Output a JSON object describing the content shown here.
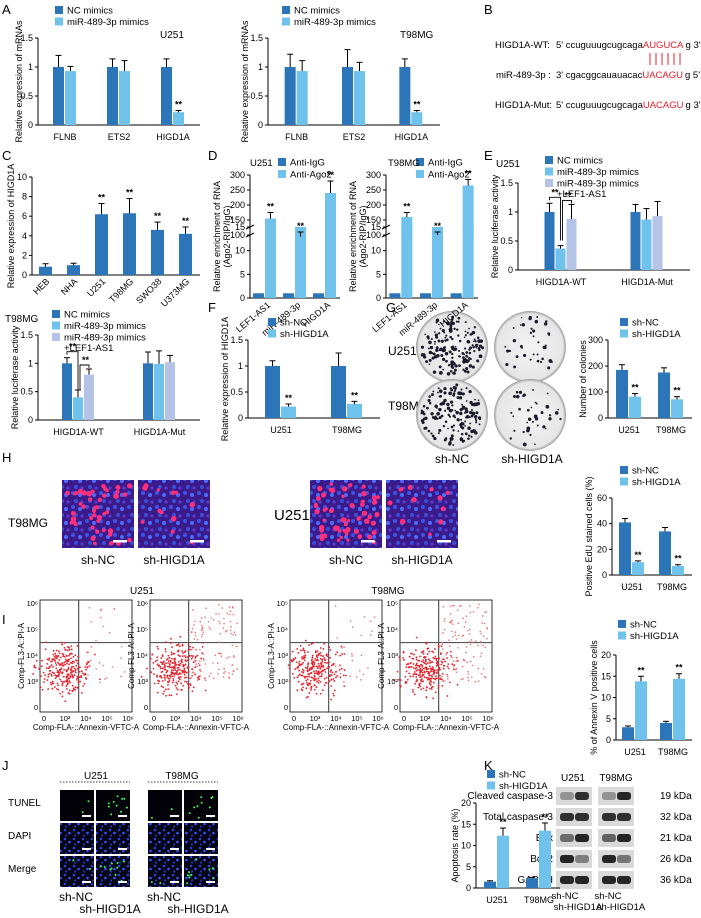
{
  "colors": {
    "dark": "#2b75b8",
    "light": "#6fc2ec",
    "pale": "#b5c4e6",
    "red": "#e8202a"
  },
  "panelB": {
    "wt_label": "HIGD1A-WT:",
    "wt_seq": "5' ccuguuugcugcaga",
    "wt_site": "AUGUCA",
    "wt_end": "g 3'",
    "mir_label": "miR-489-3p :",
    "mir_seq": "3' cgacggcauauacac",
    "mir_site": "UACAGU",
    "mir_end": "g 5'",
    "mut_label": "HIGD1A-Mut:",
    "mut_seq": "5' ccuguuugcugcaga",
    "mut_site": "UACAGU",
    "mut_end": "g 3'"
  },
  "panelG": {
    "row_labels": [
      "U251",
      "T98MG"
    ],
    "col_labels": [
      "sh-NC",
      "sh-HIGD1A"
    ]
  },
  "panelH": {
    "cell_labels": [
      "T98MG",
      "U251"
    ],
    "col_labels": [
      "sh-NC",
      "sh-HIGD1A",
      "sh-NC",
      "sh-HIGD1A"
    ]
  },
  "panelI": {
    "group_titles": [
      "U251",
      "T98MG"
    ],
    "xlabel": "Comp-FLA-::Annexin-VFTC-A",
    "ylabel": "Comp-FL3-A::PI-A",
    "xticks": [
      "0",
      "10³",
      "10⁴",
      "10⁵",
      "10⁶"
    ],
    "yticks": [
      "10⁶",
      "10⁵",
      "10⁴",
      "10³",
      "0"
    ],
    "yticks_t98": [
      "10⁵",
      "10⁴",
      "10³",
      "10²",
      "0"
    ]
  },
  "panelJ": {
    "group_titles": [
      "U251",
      "T98MG"
    ],
    "row_labels": [
      "TUNEL",
      "DAPI",
      "Merge"
    ],
    "col_labels": [
      "sh-NC",
      "sh-HIGD1A",
      "sh-NC",
      "sh-HIGD1A"
    ]
  },
  "panelK": {
    "group_titles": [
      "U251",
      "T98MG"
    ],
    "proteins": [
      "Cleaved caspase-3",
      "Total caspase-3",
      "Bax",
      "Bcl-2",
      "GAPDH"
    ],
    "sizes": [
      "19 kDa",
      "32 kDa",
      "21 kDa",
      "26 kDa",
      "36 kDa"
    ],
    "lanes": [
      "sh-NC",
      "sh-HIGD1A",
      "sh-NC",
      "sh-HIGD1A"
    ]
  },
  "chart_data": [
    {
      "id": "A1",
      "panel": "A",
      "type": "bar",
      "annotation": "U251",
      "categories": [
        "FLNB",
        "ETS2",
        "HIGD1A"
      ],
      "series": [
        {
          "name": "NC mimics",
          "values": [
            1.0,
            1.0,
            1.0
          ],
          "errors": [
            0.2,
            0.14,
            0.14
          ]
        },
        {
          "name": "miR-489-3p mimics",
          "values": [
            0.93,
            0.93,
            0.22
          ],
          "errors": [
            0.08,
            0.18,
            0.03
          ]
        }
      ],
      "ylabel": "Relative expression of mRNAs",
      "ylim": [
        0,
        1.5
      ],
      "yticks": [
        0,
        0.5,
        1.0,
        1.5
      ],
      "sig": [
        "",
        "",
        "**"
      ]
    },
    {
      "id": "A2",
      "panel": "",
      "type": "bar",
      "annotation": "T98MG",
      "categories": [
        "FLNB",
        "ETS2",
        "HIGD1A"
      ],
      "series": [
        {
          "name": "NC mimics",
          "values": [
            1.0,
            1.0,
            1.0
          ],
          "errors": [
            0.22,
            0.3,
            0.14
          ]
        },
        {
          "name": "miR-489-3p mimics",
          "values": [
            0.93,
            0.93,
            0.22
          ],
          "errors": [
            0.18,
            0.15,
            0.03
          ]
        }
      ],
      "ylabel": "Relative expression of mRNAs",
      "ylim": [
        0,
        1.5
      ],
      "yticks": [
        0,
        0.5,
        1.0,
        1.5
      ],
      "sig": [
        "",
        "",
        "**"
      ]
    },
    {
      "id": "C",
      "panel": "C",
      "type": "bar",
      "categories": [
        "HEB",
        "NHA",
        "U251",
        "T98MG",
        "SWO38",
        "U373MG"
      ],
      "series": [
        {
          "name": "",
          "values": [
            0.85,
            1.0,
            6.2,
            6.3,
            4.6,
            4.2
          ],
          "errors": [
            0.3,
            0.2,
            1.1,
            1.5,
            0.8,
            0.7
          ]
        }
      ],
      "ylabel": "Relative expression of HIGD1A",
      "ylim": [
        0,
        10
      ],
      "yticks": [
        0,
        2,
        4,
        6,
        8,
        10
      ],
      "sig": [
        "",
        "",
        "**",
        "**",
        "**",
        "**"
      ]
    },
    {
      "id": "D1",
      "panel": "D",
      "type": "bar",
      "annotation": "U251",
      "categories": [
        "LEF1-AS1",
        "miR-489-3p",
        "HIGD1A"
      ],
      "series": [
        {
          "name": "Anti-IgG",
          "values": [
            1.0,
            1.0,
            1.0
          ],
          "errors": [
            0.1,
            0.1,
            0.1
          ]
        },
        {
          "name": "Anti-Ago2",
          "values": [
            155,
            95,
            240
          ],
          "errors": [
            20,
            15,
            40
          ]
        }
      ],
      "ylabel": "Relative enrichment of RNA (Ago2-RIP/IgG)",
      "broken_axis": true,
      "yticks": [
        0,
        5,
        10,
        15,
        100,
        150,
        200,
        250,
        300
      ],
      "sig": [
        "**",
        "**",
        "**"
      ]
    },
    {
      "id": "D2",
      "panel": "",
      "type": "bar",
      "annotation": "T98MG",
      "categories": [
        "LEF1-AS1",
        "miR-489-3p",
        "HIGD1A"
      ],
      "series": [
        {
          "name": "Anti-IgG",
          "values": [
            1.0,
            1.0,
            1.0
          ],
          "errors": [
            0.1,
            0.1,
            0.1
          ]
        },
        {
          "name": "Anti-Ago2",
          "values": [
            160,
            100,
            265
          ],
          "errors": [
            15,
            10,
            20
          ]
        }
      ],
      "ylabel": "Relative enrichment of RNA (Ago2-RIP/IgG)",
      "broken_axis": true,
      "yticks": [
        0,
        5,
        10,
        15,
        100,
        150,
        200,
        250,
        300
      ],
      "sig": [
        "**",
        "**",
        "**"
      ]
    },
    {
      "id": "E1",
      "panel": "E",
      "type": "bar",
      "annotation": "U251",
      "categories": [
        "HIGD1A-WT",
        "HIGD1A-Mut"
      ],
      "series": [
        {
          "name": "NC mimics",
          "values": [
            1.0,
            1.0
          ],
          "errors": [
            0.15,
            0.13
          ]
        },
        {
          "name": "miR-489-3p mimics",
          "values": [
            0.37,
            0.87
          ],
          "errors": [
            0.05,
            0.19
          ]
        },
        {
          "name": "miR-489-3p mimics +LEF1-AS1",
          "values": [
            0.88,
            0.93
          ],
          "errors": [
            0.25,
            0.25
          ]
        }
      ],
      "ylabel": "Relative luciferase activity",
      "ylim": [
        0,
        1.5
      ],
      "yticks": [
        0,
        0.5,
        1.0,
        1.5
      ],
      "sig": [
        "**",
        "**"
      ]
    },
    {
      "id": "E2",
      "panel": "",
      "type": "bar",
      "annotation": "T98MG",
      "categories": [
        "HIGD1A-WT",
        "HIGD1A-Mut"
      ],
      "series": [
        {
          "name": "NC mimics",
          "values": [
            1.0,
            1.0
          ],
          "errors": [
            0.1,
            0.2
          ]
        },
        {
          "name": "miR-489-3p mimics",
          "values": [
            0.4,
            0.99
          ],
          "errors": [
            0.13,
            0.23
          ]
        },
        {
          "name": "miR-489-3p mimics +LEF1-AS1",
          "values": [
            0.8,
            1.02
          ],
          "errors": [
            0.1,
            0.12
          ]
        }
      ],
      "ylabel": "Relative luciferase activity",
      "ylim": [
        0,
        1.5
      ],
      "yticks": [
        0,
        0.5,
        1.0,
        1.5
      ],
      "sig": [
        "**",
        "**"
      ]
    },
    {
      "id": "F",
      "panel": "F",
      "type": "bar",
      "categories": [
        "U251",
        "T98MG"
      ],
      "series": [
        {
          "name": "sh-NC",
          "values": [
            1.0,
            1.0
          ],
          "errors": [
            0.1,
            0.25
          ]
        },
        {
          "name": "sh-HIGD1A",
          "values": [
            0.22,
            0.27
          ],
          "errors": [
            0.05,
            0.05
          ]
        }
      ],
      "ylabel": "Relative expression of HIGD1A",
      "ylim": [
        0,
        1.5
      ],
      "yticks": [
        0,
        0.5,
        1.0,
        1.5
      ],
      "sig": [
        "**",
        "**"
      ]
    },
    {
      "id": "G",
      "panel": "G",
      "type": "bar",
      "categories": [
        "U251",
        "T98MG"
      ],
      "series": [
        {
          "name": "sh-NC",
          "values": [
            185,
            175
          ],
          "errors": [
            20,
            18
          ]
        },
        {
          "name": "sh-HIGD1A",
          "values": [
            82,
            72
          ],
          "errors": [
            12,
            10
          ]
        }
      ],
      "ylabel": "Number of colonies",
      "ylim": [
        0,
        300
      ],
      "yticks": [
        0,
        100,
        200,
        300
      ],
      "sig": [
        "**",
        "**"
      ]
    },
    {
      "id": "H",
      "panel": "H",
      "type": "bar",
      "categories": [
        "U251",
        "T98MG"
      ],
      "series": [
        {
          "name": "sh-NC",
          "values": [
            41,
            34
          ],
          "errors": [
            3,
            3
          ]
        },
        {
          "name": "sh-HIGD1A",
          "values": [
            10,
            7
          ],
          "errors": [
            1,
            1
          ]
        }
      ],
      "ylabel": "Positive EdU stained cells (%)",
      "ylim": [
        0,
        60
      ],
      "yticks": [
        0,
        20,
        40,
        60
      ],
      "sig": [
        "**",
        "**"
      ]
    },
    {
      "id": "I",
      "panel": "I",
      "type": "bar",
      "categories": [
        "U251",
        "T98MG"
      ],
      "series": [
        {
          "name": "sh-NC",
          "values": [
            3,
            4
          ],
          "errors": [
            0.3,
            0.4
          ]
        },
        {
          "name": "sh-HIGD1A",
          "values": [
            13.8,
            14.4
          ],
          "errors": [
            1.2,
            1.2
          ]
        }
      ],
      "ylabel": "% of Annexin V positive cells",
      "ylim": [
        0,
        20
      ],
      "yticks": [
        0,
        5,
        10,
        15,
        20
      ],
      "sig": [
        "**",
        "**"
      ]
    },
    {
      "id": "J",
      "panel": "J",
      "type": "bar",
      "categories": [
        "U251",
        "T98MG"
      ],
      "series": [
        {
          "name": "sh-NC",
          "values": [
            1.5,
            2.3
          ],
          "errors": [
            0.2,
            0.2
          ]
        },
        {
          "name": "sh-HIGD1A",
          "values": [
            12.3,
            13.5
          ],
          "errors": [
            1.8,
            1.8
          ]
        }
      ],
      "ylabel": "Apoptosis rate (%)",
      "ylim": [
        0,
        20
      ],
      "yticks": [
        0,
        5,
        10,
        15,
        20
      ],
      "sig": [
        "**",
        "**"
      ]
    }
  ]
}
